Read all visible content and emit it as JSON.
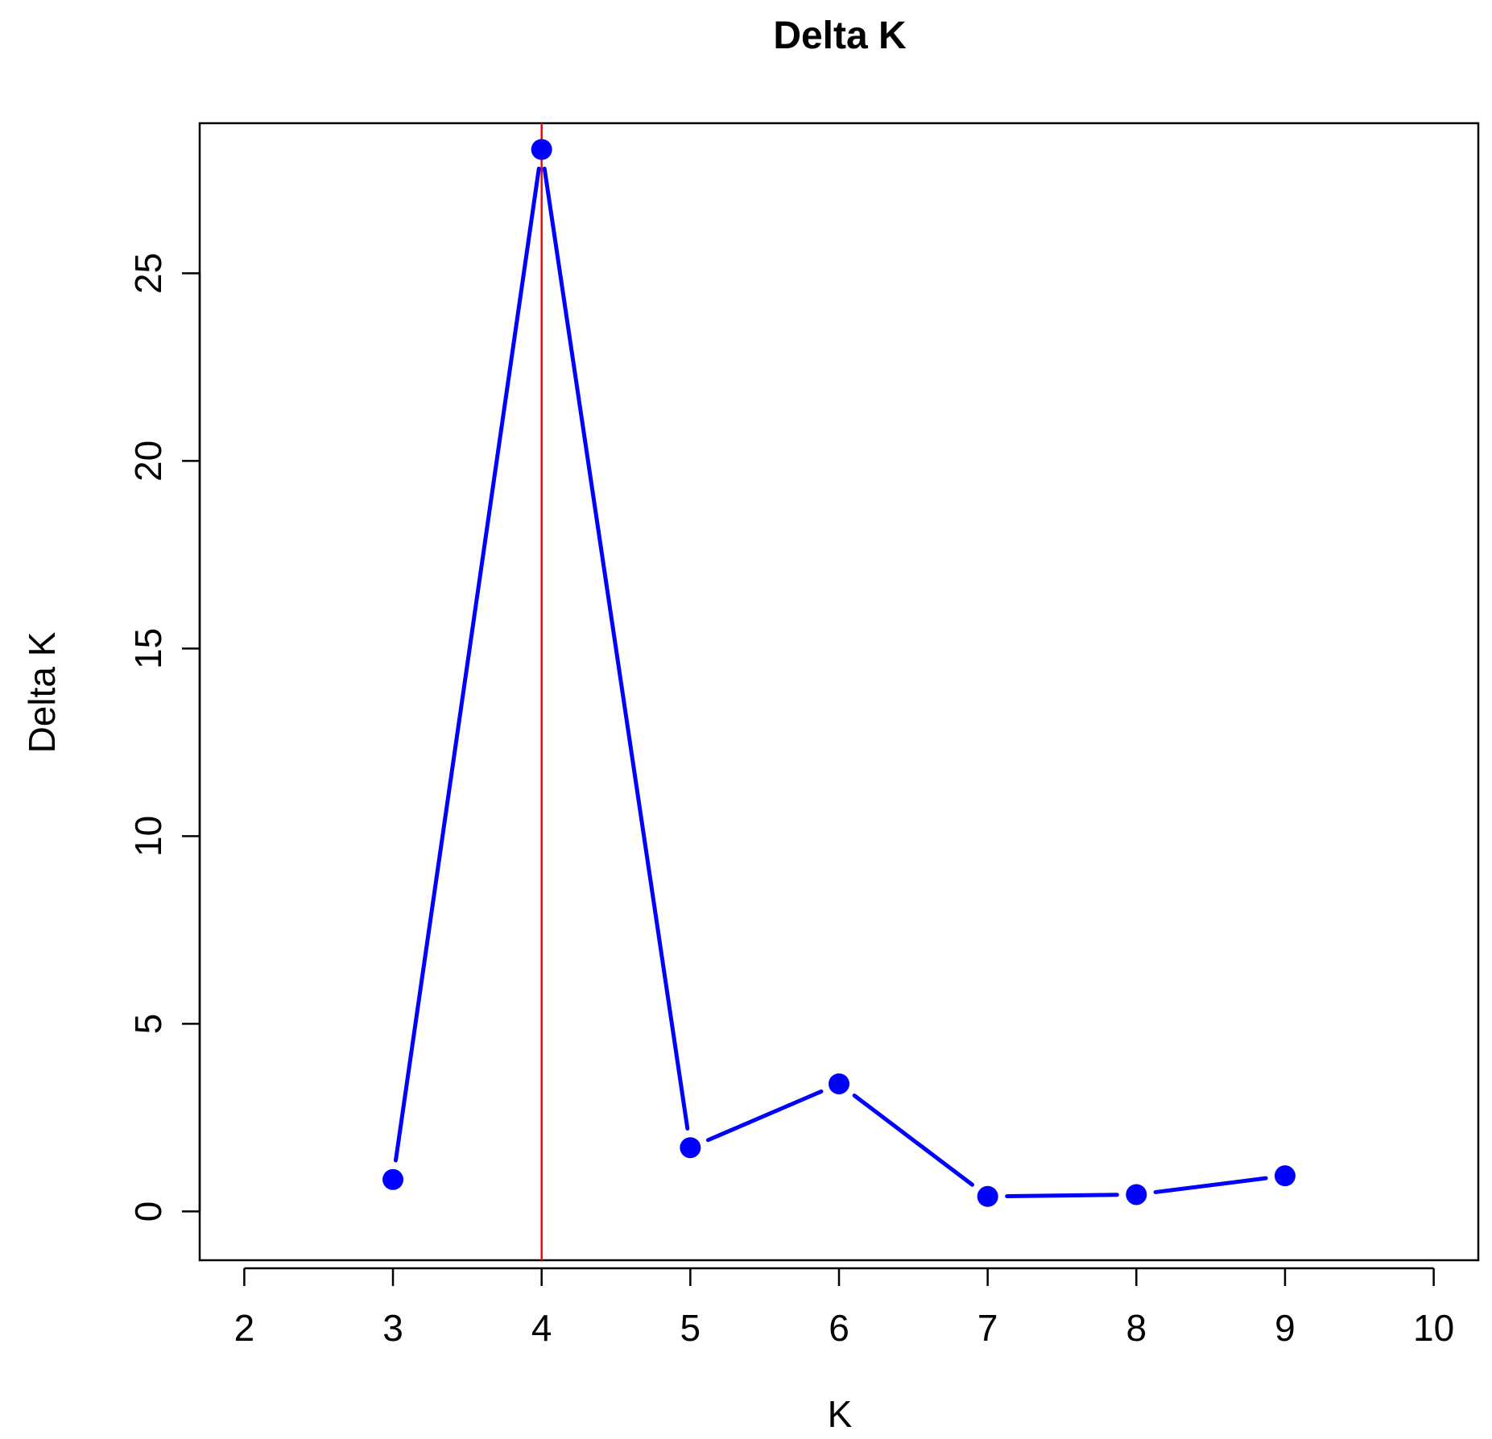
{
  "chart_data": {
    "type": "line",
    "title": "Delta K",
    "xlabel": "K",
    "ylabel": "Delta K",
    "x": [
      3,
      4,
      5,
      6,
      7,
      8,
      9
    ],
    "series": [
      {
        "values": [
          0.85,
          28.3,
          1.7,
          3.4,
          0.4,
          0.45,
          0.95
        ]
      }
    ],
    "xlim": [
      1.7,
      10.3
    ],
    "ylim": [
      -1.3,
      29.0
    ],
    "xticks": [
      2,
      3,
      4,
      5,
      6,
      7,
      8,
      9,
      10
    ],
    "yticks": [
      0,
      5,
      10,
      15,
      20,
      25
    ],
    "reference_line": {
      "orientation": "vertical",
      "x": 4,
      "color": "#ff0000"
    },
    "line_color": "#0000ff",
    "grid": false,
    "legend": false
  }
}
